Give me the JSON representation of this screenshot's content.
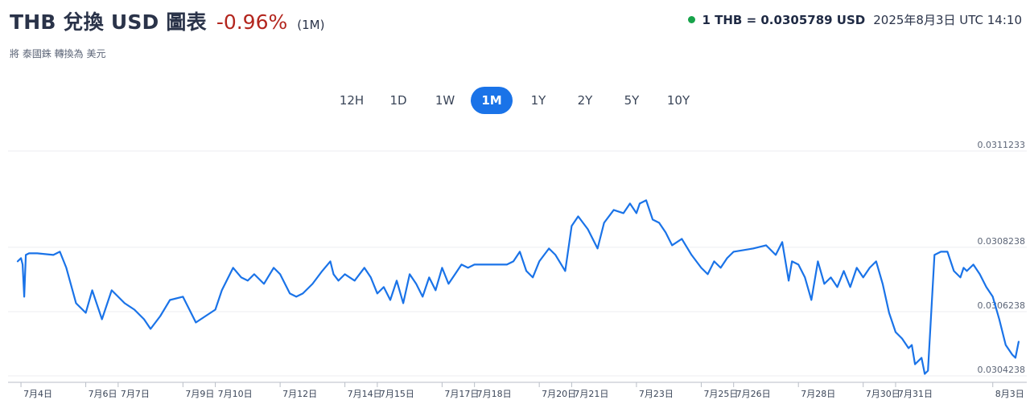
{
  "header": {
    "title": "THB 兌換 USD 圖表",
    "change": "-0.96%",
    "period": "(1M)",
    "subtitle": "將 泰國銖 轉換為 美元",
    "rate": "1 THB = 0.0305789 USD",
    "timestamp": "2025年8月3日 UTC 14:10",
    "status_color": "#17a34a"
  },
  "ranges": [
    {
      "label": "12H",
      "active": false
    },
    {
      "label": "1D",
      "active": false
    },
    {
      "label": "1W",
      "active": false
    },
    {
      "label": "1M",
      "active": true
    },
    {
      "label": "1Y",
      "active": false
    },
    {
      "label": "2Y",
      "active": false
    },
    {
      "label": "5Y",
      "active": false
    },
    {
      "label": "10Y",
      "active": false
    }
  ],
  "chart_data": {
    "type": "line",
    "line_color": "#1a73e8",
    "grid": true,
    "ylim": [
      0.0304238,
      0.0311233
    ],
    "y_ticks": [
      "0.0311233",
      "0.0308238",
      "0.0306238",
      "0.0304238"
    ],
    "y_tick_values": [
      0.0311233,
      0.0308238,
      0.0306238,
      0.0304238
    ],
    "x_tick_labels": [
      "7月4日",
      "7月6日",
      "7月7日",
      "7月9日",
      "7月10日",
      "7月12日",
      "7月14日",
      "7月15日",
      "7月17日",
      "7月18日",
      "7月20日",
      "7月21日",
      "7月23日",
      "7月25日",
      "7月26日",
      "7月28日",
      "7月30日",
      "7月31日",
      "8月3日"
    ],
    "x_tick_days": [
      0,
      2,
      3,
      5,
      6,
      8,
      10,
      11,
      13,
      14,
      16,
      17,
      19,
      21,
      22,
      24,
      26,
      27,
      30
    ],
    "series": [
      {
        "x_days": [
          -0.1,
          0.0,
          0.05,
          0.1,
          0.15,
          0.25,
          0.5,
          1.0,
          1.2,
          1.4,
          1.7,
          2.0,
          2.2,
          2.5,
          2.8,
          3.2,
          3.5,
          3.8,
          4.0,
          4.3,
          4.6,
          5.0,
          5.2,
          5.4,
          5.7,
          6.0,
          6.2,
          6.45,
          6.55,
          6.8,
          7.0,
          7.2,
          7.5,
          7.8,
          8.0,
          8.3,
          8.5,
          8.7,
          9.0,
          9.3,
          9.55,
          9.65,
          9.8,
          10.0,
          10.3,
          10.6,
          10.8,
          11.0,
          11.2,
          11.4,
          11.6,
          11.8,
          12.0,
          12.2,
          12.4,
          12.6,
          12.8,
          13.0,
          13.2,
          13.4,
          13.6,
          13.8,
          14.0,
          14.5,
          15.0,
          15.2,
          15.4,
          15.6,
          15.8,
          16.0,
          16.3,
          16.5,
          16.8,
          17.0,
          17.2,
          17.5,
          17.8,
          18.0,
          18.3,
          18.6,
          18.8,
          19.0,
          19.1,
          19.3,
          19.5,
          19.7,
          19.9,
          20.1,
          20.4,
          20.7,
          21.0,
          21.2,
          21.4,
          21.6,
          21.8,
          22.0,
          22.3,
          22.6,
          23.0,
          23.3,
          23.5,
          23.7,
          23.8,
          24.0,
          24.2,
          24.4,
          24.6,
          24.8,
          25.0,
          25.2,
          25.4,
          25.6,
          25.8,
          26.0,
          26.2,
          26.4,
          26.6,
          26.8,
          27.0,
          27.2,
          27.4,
          27.5,
          27.6,
          27.8,
          27.9,
          28.0,
          28.2,
          28.4,
          28.6,
          28.8,
          29.0,
          29.1,
          29.2,
          29.4,
          29.6,
          29.8,
          30.0,
          30.2,
          30.4,
          30.6,
          30.7,
          30.8
        ],
        "values": [
          0.03078,
          0.03079,
          0.03077,
          0.03067,
          0.0308,
          0.030805,
          0.030805,
          0.0308,
          0.03081,
          0.03076,
          0.03065,
          0.03062,
          0.03069,
          0.0306,
          0.03069,
          0.03065,
          0.03063,
          0.0306,
          0.03057,
          0.03061,
          0.03066,
          0.03067,
          0.03063,
          0.03059,
          0.03061,
          0.03063,
          0.03069,
          0.03074,
          0.03076,
          0.03073,
          0.03072,
          0.03074,
          0.03071,
          0.03076,
          0.03074,
          0.03068,
          0.03067,
          0.03068,
          0.03071,
          0.03075,
          0.03078,
          0.03074,
          0.03072,
          0.03074,
          0.03072,
          0.03076,
          0.03073,
          0.03068,
          0.0307,
          0.03066,
          0.03072,
          0.03065,
          0.03074,
          0.03071,
          0.03067,
          0.03073,
          0.03069,
          0.03076,
          0.03071,
          0.03074,
          0.03077,
          0.03076,
          0.03077,
          0.03077,
          0.03077,
          0.03078,
          0.03081,
          0.03075,
          0.03073,
          0.03078,
          0.03082,
          0.0308,
          0.03075,
          0.03089,
          0.03092,
          0.03088,
          0.03082,
          0.0309,
          0.03094,
          0.03093,
          0.03096,
          0.03093,
          0.03096,
          0.03097,
          0.03091,
          0.0309,
          0.03087,
          0.03083,
          0.03085,
          0.0308,
          0.03076,
          0.03074,
          0.03078,
          0.03076,
          0.03079,
          0.03081,
          0.030815,
          0.03082,
          0.03083,
          0.0308,
          0.03084,
          0.03072,
          0.03078,
          0.03077,
          0.03073,
          0.03066,
          0.03078,
          0.03071,
          0.03073,
          0.0307,
          0.03075,
          0.0307,
          0.03076,
          0.03073,
          0.03076,
          0.03078,
          0.03071,
          0.03062,
          0.03056,
          0.03054,
          0.03051,
          0.03052,
          0.03046,
          0.03048,
          0.03043,
          0.03044,
          0.0308,
          0.03081,
          0.03081,
          0.03075,
          0.03073,
          0.03076,
          0.03075,
          0.03077,
          0.03074,
          0.0307,
          0.03067,
          0.0306,
          0.03052,
          0.03049,
          0.03048,
          0.03053
        ]
      }
    ]
  }
}
